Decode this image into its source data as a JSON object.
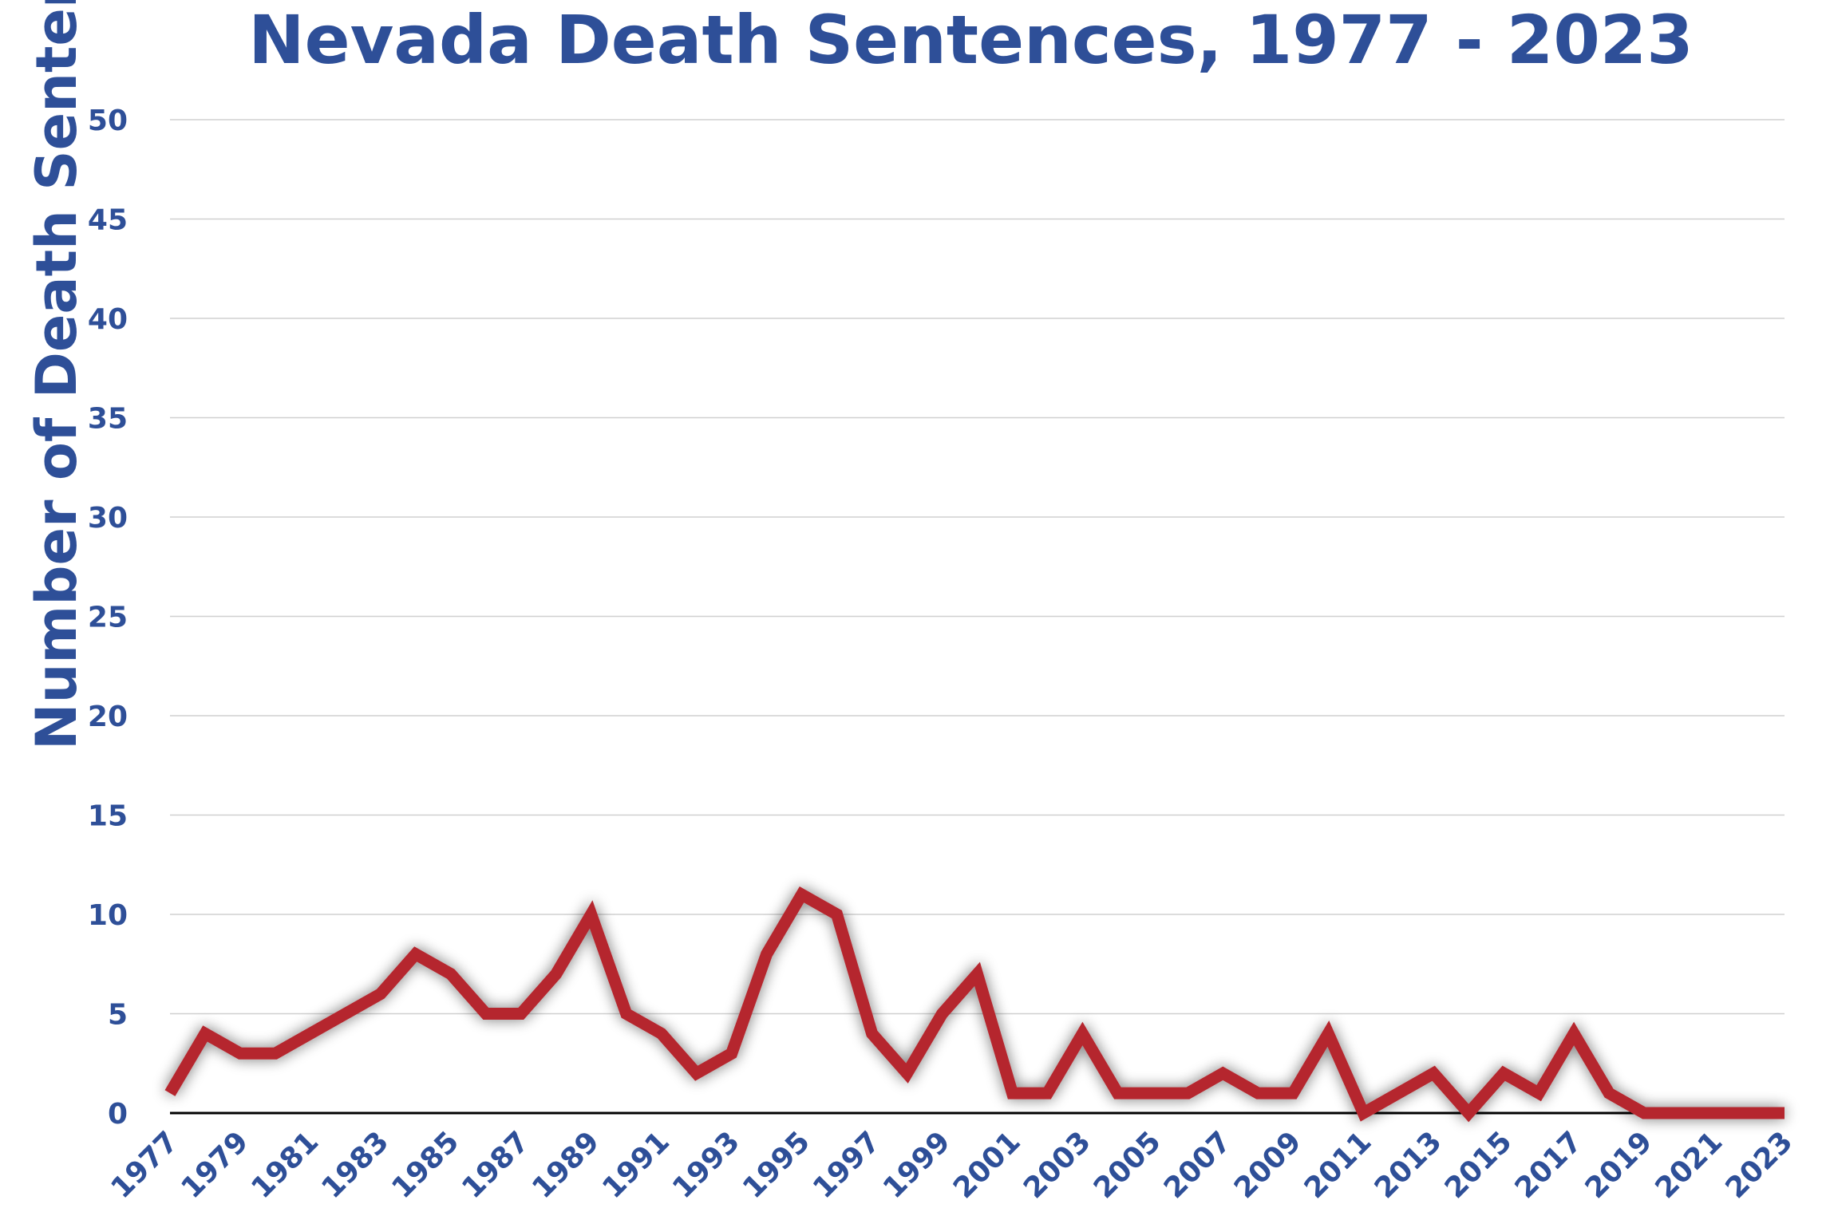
{
  "chart_data": {
    "type": "line",
    "title": "Nevada Death Sentences, 1977 - 2023",
    "xlabel": "",
    "ylabel": "Number of Death Sentences",
    "ylim": [
      0,
      50
    ],
    "yticks": [
      "0",
      "5",
      "10",
      "15",
      "20",
      "25",
      "30",
      "35",
      "40",
      "45",
      "50"
    ],
    "xticks": [
      "1977",
      "1979",
      "1981",
      "1983",
      "1985",
      "1987",
      "1989",
      "1991",
      "1993",
      "1995",
      "1997",
      "1999",
      "2001",
      "2003",
      "2005",
      "2007",
      "2009",
      "2011",
      "2013",
      "2015",
      "2017",
      "2019",
      "2021",
      "2023"
    ],
    "grid": true,
    "legend": "none",
    "line_color": "#b5272e",
    "text_color": "#2e4f98",
    "series": [
      {
        "x": [
          1977,
          1978,
          1979,
          1980,
          1981,
          1982,
          1983,
          1984,
          1985,
          1986,
          1987,
          1988,
          1989,
          1990,
          1991,
          1992,
          1993,
          1994,
          1995,
          1996,
          1997,
          1998,
          1999,
          2000,
          2001,
          2002,
          2003,
          2004,
          2005,
          2006,
          2007,
          2008,
          2009,
          2010,
          2011,
          2012,
          2013,
          2014,
          2015,
          2016,
          2017,
          2018,
          2019,
          2020,
          2021,
          2022,
          2023
        ],
        "values": [
          1,
          4,
          3,
          3,
          4,
          5,
          6,
          8,
          7,
          5,
          5,
          7,
          10,
          5,
          4,
          2,
          3,
          8,
          11,
          10,
          4,
          2,
          5,
          7,
          1,
          1,
          4,
          1,
          1,
          1,
          2,
          1,
          1,
          4,
          0,
          1,
          2,
          0,
          2,
          1,
          4,
          1,
          0,
          0,
          0,
          0,
          0
        ]
      }
    ]
  }
}
